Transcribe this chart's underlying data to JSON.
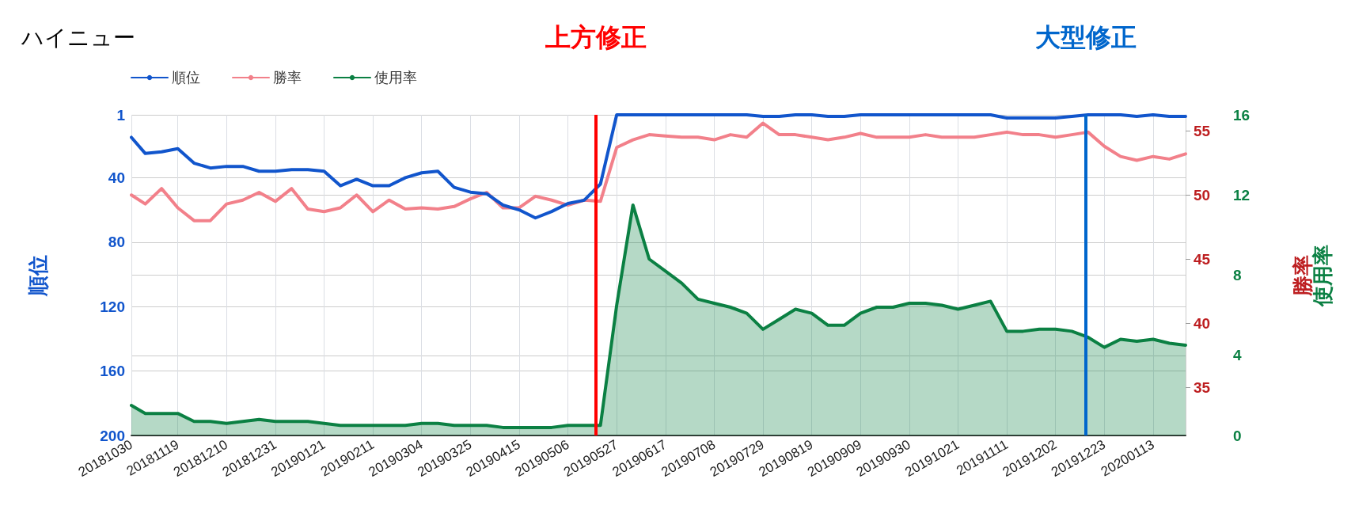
{
  "chart_data": {
    "type": "line",
    "title": "ハイニュー",
    "ylabel": "順位",
    "y2label": "勝率",
    "y3label": "使用率",
    "x": [
      "2018-10-30",
      "2018-11-05",
      "2018-11-12",
      "2018-11-19",
      "2018-11-26",
      "2018-12-03",
      "2018-12-10",
      "2018-12-17",
      "2018-12-24",
      "2018-12-31",
      "2019-01-07",
      "2019-01-14",
      "2019-01-21",
      "2019-01-28",
      "2019-02-04",
      "2019-02-11",
      "2019-02-18",
      "2019-02-25",
      "2019-03-04",
      "2019-03-11",
      "2019-03-18",
      "2019-03-25",
      "2019-04-01",
      "2019-04-08",
      "2019-04-15",
      "2019-04-22",
      "2019-04-29",
      "2019-05-06",
      "2019-05-13",
      "2019-05-20",
      "2019-05-27",
      "2019-06-03",
      "2019-06-10",
      "2019-06-17",
      "2019-06-24",
      "2019-07-01",
      "2019-07-08",
      "2019-07-15",
      "2019-07-22",
      "2019-07-29",
      "2019-08-05",
      "2019-08-12",
      "2019-08-19",
      "2019-08-26",
      "2019-09-02",
      "2019-09-09",
      "2019-09-16",
      "2019-09-23",
      "2019-09-30",
      "2019-10-07",
      "2019-10-14",
      "2019-10-21",
      "2019-10-28",
      "2019-11-04",
      "2019-11-11",
      "2019-11-18",
      "2019-11-25",
      "2019-12-02",
      "2019-12-09",
      "2019-12-16",
      "2019-12-23",
      "2019-12-30",
      "2020-01-06",
      "2020-01-13",
      "2020-01-20",
      "2020-01-27"
    ],
    "xlim": [
      "2018-10-30",
      "2020-01-27"
    ],
    "xticks": [
      {
        "value": "2018-10-30",
        "label": "20181030"
      },
      {
        "value": "2018-11-19",
        "label": "20181119"
      },
      {
        "value": "2018-12-10",
        "label": "20181210"
      },
      {
        "value": "2018-12-31",
        "label": "20181231"
      },
      {
        "value": "2019-01-21",
        "label": "20190121"
      },
      {
        "value": "2019-02-11",
        "label": "20190211"
      },
      {
        "value": "2019-03-04",
        "label": "20190304"
      },
      {
        "value": "2019-03-25",
        "label": "20190325"
      },
      {
        "value": "2019-04-15",
        "label": "20190415"
      },
      {
        "value": "2019-05-06",
        "label": "20190506"
      },
      {
        "value": "2019-05-27",
        "label": "20190527"
      },
      {
        "value": "2019-06-17",
        "label": "20190617"
      },
      {
        "value": "2019-07-08",
        "label": "20190708"
      },
      {
        "value": "2019-07-29",
        "label": "20190729"
      },
      {
        "value": "2019-08-19",
        "label": "20190819"
      },
      {
        "value": "2019-09-09",
        "label": "20190909"
      },
      {
        "value": "2019-09-30",
        "label": "20190930"
      },
      {
        "value": "2019-10-21",
        "label": "20191021"
      },
      {
        "value": "2019-11-11",
        "label": "20191111"
      },
      {
        "value": "2019-12-02",
        "label": "20191202"
      },
      {
        "value": "2019-12-23",
        "label": "20191223"
      },
      {
        "value": "2020-01-13",
        "label": "20200113"
      }
    ],
    "ylim": [
      200,
      1
    ],
    "yticks": [
      1,
      40,
      80,
      120,
      160,
      200
    ],
    "y2lim": [
      31.25,
      56.25
    ],
    "y2ticks": [
      35,
      40,
      45,
      50,
      55
    ],
    "y3lim": [
      0,
      16
    ],
    "y3ticks": [
      0,
      4,
      8,
      12,
      16
    ],
    "series": [
      {
        "name": "順位",
        "color": "#1155cc",
        "values": [
          15,
          25,
          24,
          22,
          31,
          34,
          33,
          33,
          36,
          36,
          35,
          35,
          36,
          45,
          41,
          45,
          45,
          40,
          37,
          36,
          46,
          49,
          50,
          57,
          60,
          65,
          61,
          56,
          54,
          44,
          1,
          1,
          1,
          1,
          1,
          1,
          1,
          1,
          1,
          2,
          2,
          1,
          1,
          2,
          2,
          1,
          1,
          1,
          1,
          1,
          1,
          1,
          1,
          1,
          3,
          3,
          3,
          3,
          2,
          1,
          1,
          1,
          2,
          1,
          2,
          2
        ]
      },
      {
        "name": "勝率",
        "color": "#f2808a",
        "axis": "y2",
        "values": [
          50.0,
          49.3,
          50.5,
          49.0,
          48.0,
          48.0,
          49.3,
          49.6,
          50.2,
          49.5,
          50.5,
          48.9,
          48.7,
          49.0,
          50.0,
          48.7,
          49.6,
          48.9,
          49.0,
          48.9,
          49.1,
          49.7,
          50.2,
          49.0,
          49.0,
          49.9,
          49.6,
          49.2,
          49.6,
          49.5,
          53.7,
          54.3,
          54.7,
          54.6,
          54.5,
          54.5,
          54.3,
          54.7,
          54.5,
          55.6,
          54.7,
          54.7,
          54.5,
          54.3,
          54.5,
          54.8,
          54.5,
          54.5,
          54.5,
          54.7,
          54.5,
          54.5,
          54.5,
          54.7,
          54.9,
          54.7,
          54.7,
          54.5,
          54.7,
          54.9,
          53.8,
          53.0,
          52.7,
          53.0,
          52.8,
          53.2
        ]
      },
      {
        "name": "使用率",
        "type": "area",
        "color": "#0b8043",
        "axis": "y3",
        "values": [
          1.5,
          1.1,
          1.1,
          1.1,
          0.7,
          0.7,
          0.6,
          0.7,
          0.8,
          0.7,
          0.7,
          0.7,
          0.6,
          0.5,
          0.5,
          0.5,
          0.5,
          0.5,
          0.6,
          0.6,
          0.5,
          0.5,
          0.5,
          0.4,
          0.4,
          0.4,
          0.4,
          0.5,
          0.5,
          0.5,
          6.5,
          11.5,
          8.8,
          8.2,
          7.6,
          6.8,
          6.6,
          6.4,
          6.1,
          5.3,
          5.8,
          6.3,
          6.1,
          5.5,
          5.5,
          6.1,
          6.4,
          6.4,
          6.6,
          6.6,
          6.5,
          6.3,
          6.5,
          6.7,
          5.2,
          5.2,
          5.3,
          5.3,
          5.2,
          4.9,
          4.4,
          4.8,
          4.7,
          4.8,
          4.6,
          4.5
        ]
      }
    ],
    "ref_lines": [
      {
        "axis": "x",
        "value": "2019-05-18",
        "label": "上方修正",
        "color": "#ff0000"
      },
      {
        "axis": "x",
        "value": "2019-12-15",
        "label": "大型修正",
        "color": "#0066cc"
      }
    ],
    "grid": true,
    "legend": "top left",
    "marker": "none",
    "line_style": "solid"
  }
}
